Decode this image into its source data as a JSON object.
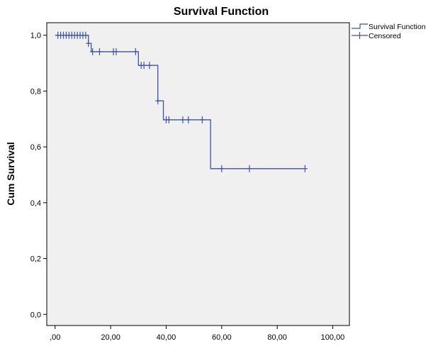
{
  "chart_data": {
    "type": "line",
    "title": "Survival Function",
    "xlabel": "",
    "ylabel": "Cum Survival",
    "xlim": [
      -3,
      106
    ],
    "ylim": [
      -0.04,
      1.045
    ],
    "x_ticks": [
      0,
      20,
      40,
      60,
      80,
      100
    ],
    "x_tick_labels": [
      ",00",
      "20,00",
      "40,00",
      "60,00",
      "80,00",
      "100,00"
    ],
    "y_ticks": [
      0,
      0.2,
      0.4,
      0.6,
      0.8,
      1.0
    ],
    "y_tick_labels": [
      "0,0",
      "0,2",
      "0,4",
      "0,6",
      "0,8",
      "1,0"
    ],
    "grid": false,
    "legend_position": "top-right, outside plot",
    "colors": {
      "line": "#3f51a8",
      "plot_background": "#f0f0f0",
      "axis": "#000000"
    },
    "series": [
      {
        "name": "Survival Function",
        "kind": "step",
        "points": [
          [
            0,
            1.0
          ],
          [
            12,
            1.0
          ],
          [
            12,
            0.971
          ],
          [
            13,
            0.971
          ],
          [
            13,
            0.941
          ],
          [
            30,
            0.941
          ],
          [
            30,
            0.892
          ],
          [
            37,
            0.892
          ],
          [
            37,
            0.765
          ],
          [
            39,
            0.765
          ],
          [
            39,
            0.697
          ],
          [
            56,
            0.697
          ],
          [
            56,
            0.522
          ],
          [
            90,
            0.522
          ]
        ]
      },
      {
        "name": "Censored",
        "kind": "markers",
        "points": [
          [
            1,
            1.0
          ],
          [
            2,
            1.0
          ],
          [
            3,
            1.0
          ],
          [
            4,
            1.0
          ],
          [
            5,
            1.0
          ],
          [
            6,
            1.0
          ],
          [
            7,
            1.0
          ],
          [
            8,
            1.0
          ],
          [
            9,
            1.0
          ],
          [
            10,
            1.0
          ],
          [
            11,
            1.0
          ],
          [
            12,
            0.971
          ],
          [
            13.5,
            0.941
          ],
          [
            16,
            0.941
          ],
          [
            21,
            0.941
          ],
          [
            22,
            0.941
          ],
          [
            29,
            0.941
          ],
          [
            31,
            0.892
          ],
          [
            32,
            0.892
          ],
          [
            34,
            0.892
          ],
          [
            37,
            0.765
          ],
          [
            40,
            0.697
          ],
          [
            41,
            0.697
          ],
          [
            46,
            0.697
          ],
          [
            48,
            0.697
          ],
          [
            53,
            0.697
          ],
          [
            60,
            0.522
          ],
          [
            70,
            0.522
          ],
          [
            90,
            0.522
          ]
        ]
      }
    ]
  }
}
